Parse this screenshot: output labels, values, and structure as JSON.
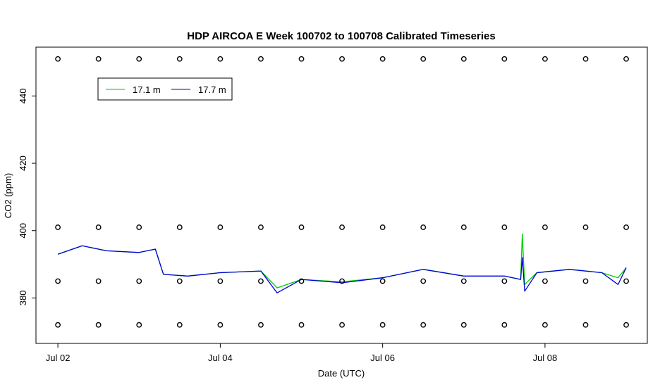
{
  "chart_data": {
    "type": "line",
    "title": "HDP AIRCOA E  Week 100702 to 100708  Calibrated Timeseries",
    "xlabel": "Date (UTC)",
    "ylabel": "CO2 (ppm)",
    "x_ticks": [
      "Jul 02",
      "Jul 04",
      "Jul 06",
      "Jul 08"
    ],
    "y_ticks": [
      380,
      400,
      420,
      440
    ],
    "xlim_days": [
      -0.27,
      7.26
    ],
    "ylim": [
      366.5,
      454.5
    ],
    "grid": false,
    "legend_position": "top-left",
    "series": [
      {
        "name": "17.1 m",
        "color": "#00cc00",
        "x": [
          0.0,
          0.3,
          0.6,
          1.0,
          1.2,
          1.3,
          1.6,
          2.0,
          2.5,
          2.7,
          3.0,
          3.5,
          4.0,
          4.5,
          5.0,
          5.5,
          5.7,
          5.72,
          5.75,
          5.9,
          6.3,
          6.7,
          6.9,
          7.0
        ],
        "y": [
          393,
          395.5,
          394,
          393.5,
          394.5,
          387,
          386.5,
          387.5,
          388,
          383,
          385.5,
          384.8,
          386,
          388.5,
          386.5,
          386.5,
          385.5,
          399,
          384,
          387.5,
          388.5,
          387.5,
          386,
          389
        ]
      },
      {
        "name": "17.7 m",
        "color": "#0000dd",
        "x": [
          0.0,
          0.3,
          0.6,
          1.0,
          1.2,
          1.3,
          1.6,
          2.0,
          2.5,
          2.7,
          3.0,
          3.5,
          4.0,
          4.5,
          5.0,
          5.5,
          5.7,
          5.72,
          5.75,
          5.9,
          6.3,
          6.7,
          6.9,
          7.0
        ],
        "y": [
          393,
          395.5,
          394,
          393.5,
          394.5,
          387,
          386.5,
          387.5,
          388,
          381.5,
          385.5,
          384.5,
          386,
          388.5,
          386.5,
          386.5,
          385.5,
          392,
          382,
          387.5,
          388.5,
          387.5,
          384,
          389
        ]
      },
      {
        "name": "",
        "color": "#000000",
        "marker": "circle",
        "x": [
          0,
          0.5,
          1,
          1.5,
          2,
          2.5,
          3,
          3.5,
          4,
          4.5,
          5,
          5.5,
          6,
          6.5,
          7
        ],
        "y": [
          451,
          451,
          451,
          451,
          451,
          451,
          451,
          451,
          451,
          451,
          451,
          451,
          451,
          451,
          451
        ]
      },
      {
        "name": "",
        "color": "#000000",
        "marker": "circle",
        "x": [
          0,
          0.5,
          1,
          1.5,
          2,
          2.5,
          3,
          3.5,
          4,
          4.5,
          5,
          5.5,
          6,
          6.5,
          7
        ],
        "y": [
          401,
          401,
          401,
          401,
          401,
          401,
          401,
          401,
          401,
          401,
          401,
          401,
          401,
          401,
          401
        ]
      },
      {
        "name": "",
        "color": "#000000",
        "marker": "circle",
        "x": [
          0,
          0.5,
          1,
          1.5,
          2,
          2.5,
          3,
          3.5,
          4,
          4.5,
          5,
          5.5,
          6,
          6.5,
          7
        ],
        "y": [
          385,
          385,
          385,
          385,
          385,
          385,
          385,
          385,
          385,
          385,
          385,
          385,
          385,
          385,
          385
        ]
      },
      {
        "name": "",
        "color": "#000000",
        "marker": "circle",
        "x": [
          0,
          0.5,
          1,
          1.5,
          2,
          2.5,
          3,
          3.5,
          4,
          4.5,
          5,
          5.5,
          6,
          6.5,
          7
        ],
        "y": [
          372,
          372,
          372,
          372,
          372,
          372,
          372,
          372,
          372,
          372,
          372,
          372,
          372,
          372,
          372
        ]
      }
    ]
  }
}
